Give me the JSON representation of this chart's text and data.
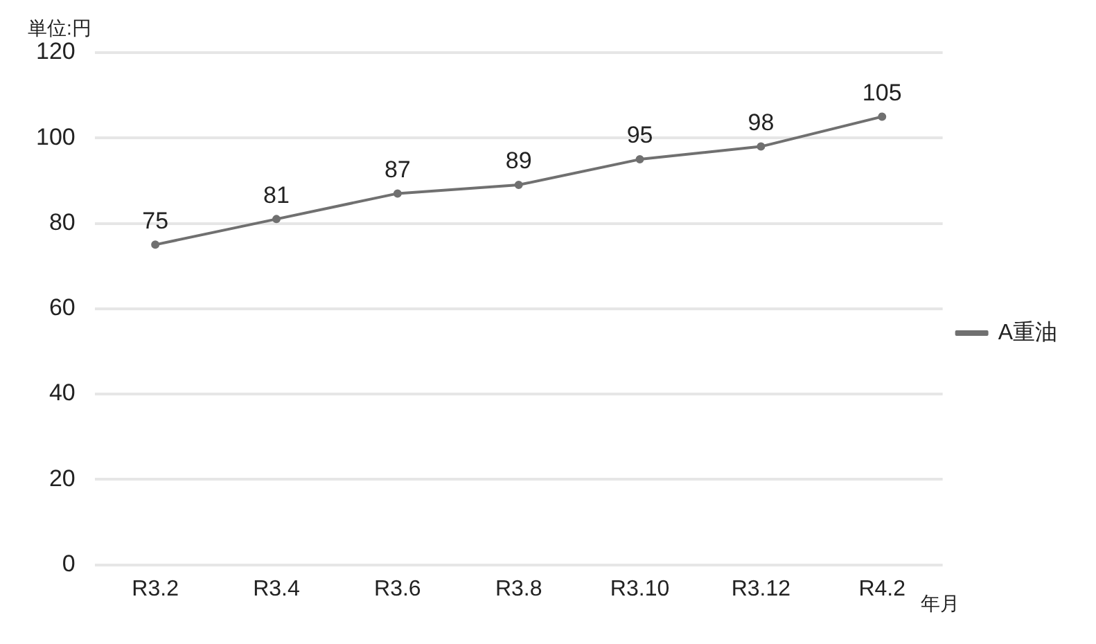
{
  "chart_data": {
    "type": "line",
    "ylabel": "単位:円",
    "xlabel": "年月",
    "categories": [
      "R3.2",
      "R3.4",
      "R3.6",
      "R3.8",
      "R3.10",
      "R3.12",
      "R4.2"
    ],
    "series": [
      {
        "name": "A重油",
        "color": "#707070",
        "values": [
          75,
          81,
          87,
          89,
          95,
          98,
          105
        ]
      }
    ],
    "ylim": [
      0,
      120
    ],
    "yticks": [
      0,
      20,
      40,
      60,
      80,
      100,
      120
    ],
    "grid": "y",
    "legend": "right",
    "marker": "circle",
    "line_style": "solid",
    "data_labels": true
  }
}
